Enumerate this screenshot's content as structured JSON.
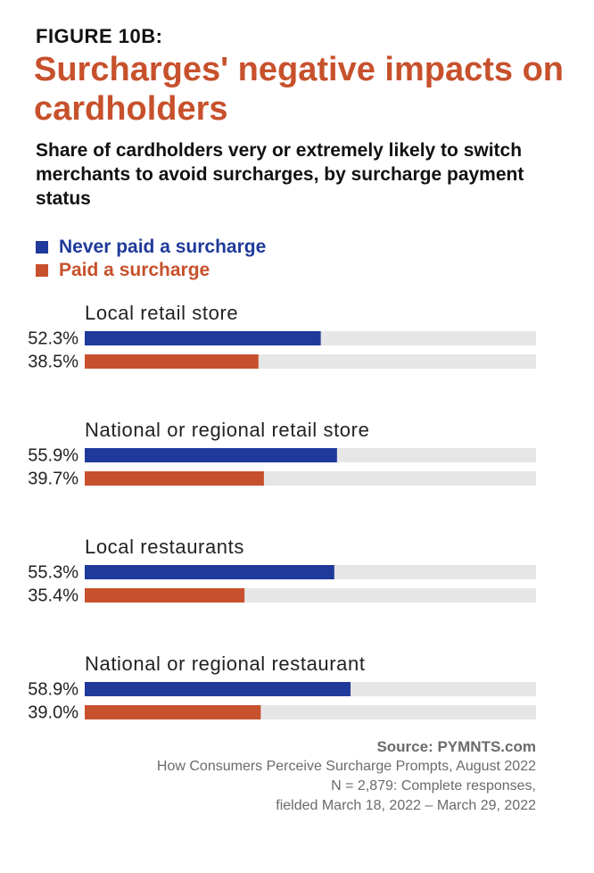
{
  "figure_label": "FIGURE 10B:",
  "title": "Surcharges' negative impacts on cardholders",
  "subtitle": "Share of cardholders very or extremely likely to switch merchants to avoid surcharges, by surcharge payment status",
  "colors": {
    "never": "#1f3a9a",
    "paid": "#c7512c",
    "track": "#e6e6e6",
    "title": "#c7512c"
  },
  "legend": [
    {
      "label": "Never paid a surcharge",
      "color": "#1f3a9a"
    },
    {
      "label": "Paid a surcharge",
      "color": "#c7512c"
    }
  ],
  "chart_data": {
    "type": "bar",
    "orientation": "horizontal",
    "categories": [
      "Local retail store",
      "National or regional retail store",
      "Local restaurants",
      "National or regional restaurant"
    ],
    "series": [
      {
        "name": "Never paid a surcharge",
        "values": [
          52.3,
          55.9,
          55.3,
          58.9
        ],
        "labels": [
          "52.3%",
          "55.9%",
          "55.3%",
          "58.9%"
        ]
      },
      {
        "name": "Paid a surcharge",
        "values": [
          38.5,
          39.7,
          35.4,
          39.0
        ],
        "labels": [
          "38.5%",
          "39.7%",
          "35.4%",
          "39.0%"
        ]
      }
    ],
    "xlim": [
      0,
      100
    ],
    "grid": false,
    "legend_position": "top-left"
  },
  "source": {
    "head": "Source: PYMNTS.com",
    "line1": "How Consumers Perceive Surcharge Prompts, August 2022",
    "line2": "N = 2,879: Complete responses,",
    "line3": "fielded March 18, 2022 – March 29, 2022"
  }
}
